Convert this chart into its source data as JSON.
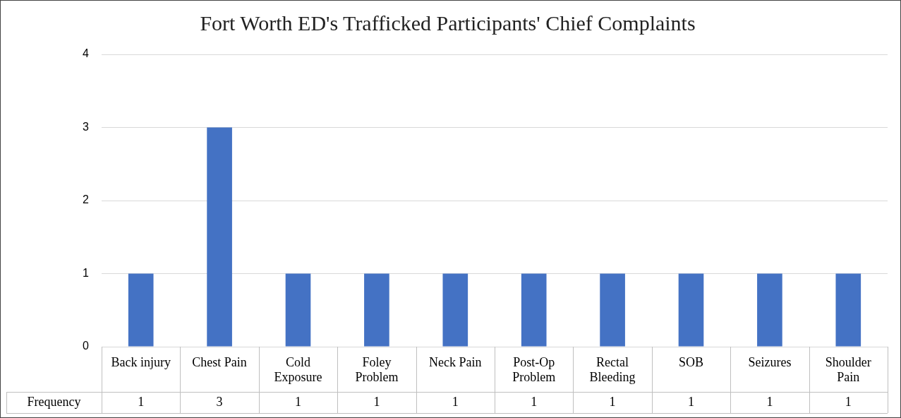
{
  "chart_data": {
    "type": "bar",
    "title": "Fort Worth ED's Trafficked Participants' Chief Complaints",
    "categories": [
      "Back injury",
      "Chest Pain",
      "Cold Exposure",
      "Foley Problem",
      "Neck Pain",
      "Post-Op Problem",
      "Rectal Bleeding",
      "SOB",
      "Seizures",
      "Shoulder Pain"
    ],
    "series": [
      {
        "name": "Frequency",
        "color": "#4472c4",
        "values": [
          1,
          3,
          1,
          1,
          1,
          1,
          1,
          1,
          1,
          1
        ]
      }
    ],
    "ylim": [
      0,
      4
    ],
    "yticks": [
      0,
      1,
      2,
      3,
      4
    ],
    "grid": "y",
    "data_labels": true
  }
}
